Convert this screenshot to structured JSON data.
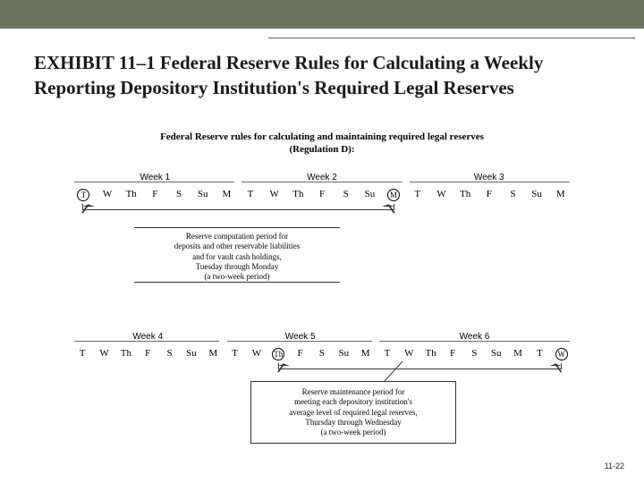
{
  "header": {
    "bar_color": "#6b735a"
  },
  "title": "EXHIBIT 11–1 Federal Reserve Rules for Calculating a Weekly Reporting Depository Institution's Required Legal Reserves",
  "subhead_l1": "Federal Reserve rules for calculating and maintaining required legal reserves",
  "subhead_l2": "(Regulation D):",
  "weeks_top": [
    "Week 1",
    "Week 2",
    "Week 3"
  ],
  "weeks_bottom": [
    "Week 4",
    "Week 5",
    "Week 6"
  ],
  "days_top": [
    "T",
    "W",
    "Th",
    "F",
    "S",
    "Su",
    "M",
    "T",
    "W",
    "Th",
    "F",
    "S",
    "Su",
    "M",
    "T",
    "W",
    "Th",
    "F",
    "S",
    "Su",
    "M"
  ],
  "days_bottom": [
    "T",
    "W",
    "Th",
    "F",
    "S",
    "Su",
    "M",
    "T",
    "W",
    "Th",
    "F",
    "S",
    "Su",
    "M",
    "T",
    "W",
    "Th",
    "F",
    "S",
    "Su",
    "M",
    "T",
    "W"
  ],
  "circled_top_indices": [
    0,
    13
  ],
  "circled_bottom_indices": [
    9,
    22
  ],
  "comp_desc": "Reserve computation period for\ndeposits and other reservable liabilities\nand for vault cash holdings,\nTuesday through Monday\n(a two-week period)",
  "maint_desc": "Reserve maintenance period for\nmeeting each depository institution's\naverage level of required legal reserves,\nThursday through Wednesday\n(a two-week period)",
  "page_number": "11-22",
  "colors": {
    "text": "#1a1a1a",
    "line": "#333333",
    "background": "#ffffff"
  }
}
